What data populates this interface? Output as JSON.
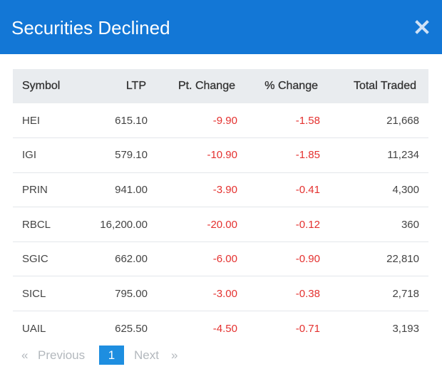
{
  "modal": {
    "title": "Securities Declined",
    "close_icon": "close-icon"
  },
  "table": {
    "columns": [
      "Symbol",
      "LTP",
      "Pt. Change",
      "% Change",
      "Total Traded"
    ],
    "rows": [
      {
        "symbol": "HEI",
        "ltp": "615.10",
        "pt_change": "-9.90",
        "pct_change": "-1.58",
        "total_traded": "21,668"
      },
      {
        "symbol": "IGI",
        "ltp": "579.10",
        "pt_change": "-10.90",
        "pct_change": "-1.85",
        "total_traded": "11,234"
      },
      {
        "symbol": "PRIN",
        "ltp": "941.00",
        "pt_change": "-3.90",
        "pct_change": "-0.41",
        "total_traded": "4,300"
      },
      {
        "symbol": "RBCL",
        "ltp": "16,200.00",
        "pt_change": "-20.00",
        "pct_change": "-0.12",
        "total_traded": "360"
      },
      {
        "symbol": "SGIC",
        "ltp": "662.00",
        "pt_change": "-6.00",
        "pct_change": "-0.90",
        "total_traded": "22,810"
      },
      {
        "symbol": "SICL",
        "ltp": "795.00",
        "pt_change": "-3.00",
        "pct_change": "-0.38",
        "total_traded": "2,718"
      },
      {
        "symbol": "UAIL",
        "ltp": "625.50",
        "pt_change": "-4.50",
        "pct_change": "-0.71",
        "total_traded": "3,193"
      }
    ]
  },
  "pagination": {
    "prev_arrow": "«",
    "prev_label": "Previous",
    "current_page": "1",
    "next_label": "Next",
    "next_arrow": "»"
  },
  "colors": {
    "header_bg": "#1377d6",
    "negative": "#e4312f",
    "active_page": "#1e8ee0"
  }
}
